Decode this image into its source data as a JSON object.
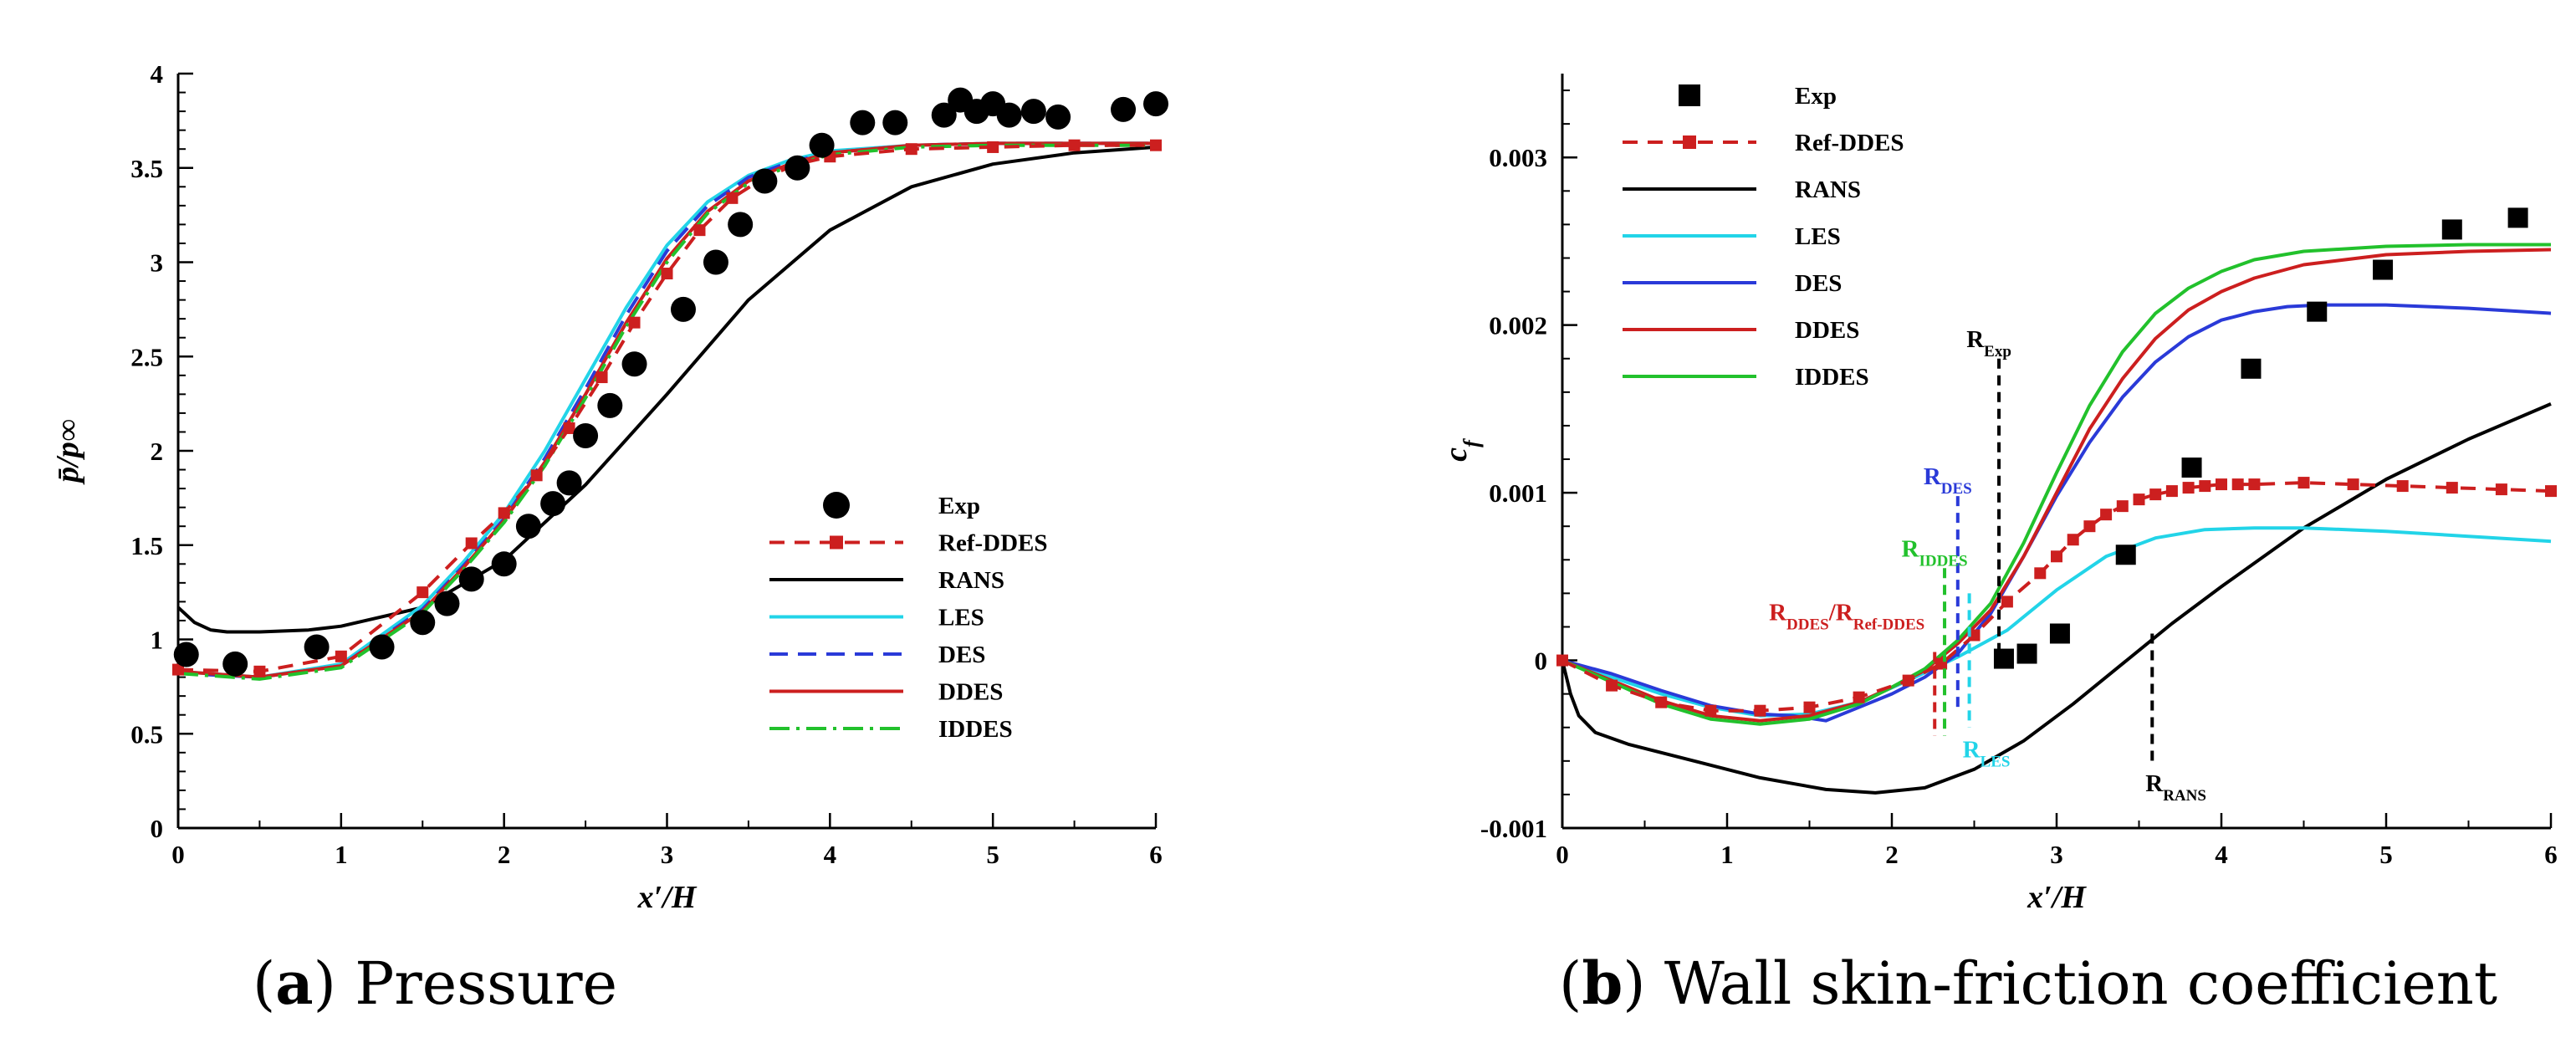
{
  "chart_data": [
    {
      "panel": "a",
      "type": "line",
      "caption_label": "a",
      "caption_text": "Pressure",
      "xlabel": "x′/H",
      "ylabel": "p̄/p∞",
      "xlim": [
        0,
        6
      ],
      "ylim": [
        0,
        4
      ],
      "xticks": [
        0,
        1,
        2,
        3,
        4,
        5,
        6
      ],
      "xtick_labels": [
        "0",
        "1",
        "2",
        "3",
        "4",
        "5",
        "6"
      ],
      "yticks": [
        0,
        0.5,
        1,
        1.5,
        2,
        2.5,
        3,
        3.5,
        4
      ],
      "ytick_labels": [
        "0",
        "0.5",
        "1",
        "1.5",
        "2",
        "2.5",
        "3",
        "3.5",
        "4"
      ],
      "legend_position": "center-right",
      "series": [
        {
          "name": "Exp",
          "style": "marker-circle",
          "color": "#000000",
          "x": [
            0.05,
            0.35,
            0.85,
            1.25,
            1.5,
            1.65,
            1.8,
            2.0,
            2.15,
            2.3,
            2.4,
            2.5,
            2.65,
            2.8,
            3.1,
            3.3,
            3.45,
            3.6,
            3.8,
            3.95,
            4.2,
            4.4,
            4.7,
            4.8,
            4.9,
            5.0,
            5.1,
            5.25,
            5.4,
            5.8,
            6.0
          ],
          "y": [
            0.92,
            0.87,
            0.96,
            0.96,
            1.09,
            1.19,
            1.32,
            1.4,
            1.6,
            1.72,
            1.83,
            2.08,
            2.24,
            2.46,
            2.75,
            3.0,
            3.2,
            3.43,
            3.5,
            3.62,
            3.74,
            3.74,
            3.78,
            3.86,
            3.8,
            3.84,
            3.78,
            3.8,
            3.77,
            3.81,
            3.84
          ]
        },
        {
          "name": "Ref-DDES",
          "style": "dashed-square",
          "color": "#cc1f1f",
          "x": [
            0,
            0.5,
            1.0,
            1.5,
            1.8,
            2.0,
            2.2,
            2.4,
            2.6,
            2.8,
            3.0,
            3.2,
            3.4,
            3.6,
            3.8,
            4.0,
            4.5,
            5.0,
            5.5,
            6.0
          ],
          "y": [
            0.84,
            0.83,
            0.91,
            1.25,
            1.51,
            1.67,
            1.87,
            2.12,
            2.39,
            2.68,
            2.94,
            3.17,
            3.34,
            3.45,
            3.52,
            3.56,
            3.6,
            3.61,
            3.62,
            3.62
          ]
        },
        {
          "name": "RANS",
          "style": "solid",
          "color": "#000000",
          "x": [
            0,
            0.1,
            0.2,
            0.3,
            0.5,
            0.8,
            1.0,
            1.5,
            2.0,
            2.5,
            3.0,
            3.5,
            4.0,
            4.5,
            5.0,
            5.5,
            6.0
          ],
          "y": [
            1.17,
            1.09,
            1.05,
            1.04,
            1.04,
            1.05,
            1.07,
            1.17,
            1.42,
            1.82,
            2.3,
            2.8,
            3.17,
            3.4,
            3.52,
            3.58,
            3.61
          ]
        },
        {
          "name": "LES",
          "style": "solid",
          "color": "#22d4e8",
          "x": [
            0,
            0.5,
            1.0,
            1.5,
            1.75,
            2.0,
            2.25,
            2.5,
            2.75,
            3.0,
            3.25,
            3.5,
            3.75,
            4.0,
            4.5,
            5.0,
            5.5,
            6.0
          ],
          "y": [
            0.83,
            0.8,
            0.87,
            1.18,
            1.41,
            1.67,
            2.0,
            2.38,
            2.76,
            3.09,
            3.32,
            3.46,
            3.54,
            3.59,
            3.62,
            3.63,
            3.63,
            3.63
          ]
        },
        {
          "name": "DES",
          "style": "dashed",
          "color": "#2a3ad8",
          "x": [
            0,
            0.5,
            1.0,
            1.5,
            1.75,
            2.0,
            2.25,
            2.5,
            2.75,
            3.0,
            3.25,
            3.5,
            3.75,
            4.0,
            4.5,
            5.0,
            5.5,
            6.0
          ],
          "y": [
            0.82,
            0.8,
            0.86,
            1.16,
            1.39,
            1.64,
            1.96,
            2.33,
            2.72,
            3.06,
            3.3,
            3.45,
            3.53,
            3.58,
            3.62,
            3.63,
            3.63,
            3.63
          ]
        },
        {
          "name": "DDES",
          "style": "solid",
          "color": "#cc1f1f",
          "x": [
            0,
            0.5,
            1.0,
            1.5,
            1.75,
            2.0,
            2.25,
            2.5,
            2.75,
            3.0,
            3.25,
            3.5,
            3.75,
            4.0,
            4.5,
            5.0,
            5.5,
            6.0
          ],
          "y": [
            0.83,
            0.8,
            0.86,
            1.15,
            1.38,
            1.63,
            1.94,
            2.3,
            2.68,
            3.02,
            3.27,
            3.43,
            3.52,
            3.58,
            3.62,
            3.63,
            3.63,
            3.63
          ]
        },
        {
          "name": "IDDES",
          "style": "dashdot",
          "color": "#22c12c",
          "x": [
            0,
            0.5,
            1.0,
            1.5,
            1.75,
            2.0,
            2.25,
            2.5,
            2.75,
            3.0,
            3.25,
            3.5,
            3.75,
            4.0,
            4.5,
            5.0,
            5.5,
            6.0
          ],
          "y": [
            0.82,
            0.79,
            0.85,
            1.14,
            1.37,
            1.62,
            1.92,
            2.28,
            2.66,
            3.0,
            3.26,
            3.42,
            3.51,
            3.57,
            3.61,
            3.62,
            3.62,
            3.62
          ]
        }
      ]
    },
    {
      "panel": "b",
      "type": "line",
      "caption_label": "b",
      "caption_text": "Wall skin-friction coefficient",
      "xlabel": "x′/H",
      "ylabel": "c",
      "ylabel_sub": "f",
      "xlim": [
        0,
        6
      ],
      "ylim": [
        -0.001,
        0.0035
      ],
      "xticks": [
        0,
        1,
        2,
        3,
        4,
        5,
        6
      ],
      "xtick_labels": [
        "0",
        "1",
        "2",
        "3",
        "4",
        "5",
        "6"
      ],
      "yticks": [
        -0.001,
        0,
        0.001,
        0.002,
        0.003
      ],
      "ytick_labels": [
        "-0.001",
        "0",
        "0.001",
        "0.002",
        "0.003"
      ],
      "legend_position": "top-left",
      "series": [
        {
          "name": "Exp",
          "style": "marker-square",
          "color": "#000000",
          "x": [
            2.68,
            2.82,
            3.02,
            3.42,
            3.82,
            4.18,
            4.58,
            4.98,
            5.4,
            5.8
          ],
          "y": [
            1e-05,
            4e-05,
            0.00016,
            0.00063,
            0.00115,
            0.00174,
            0.00208,
            0.00233,
            0.00257,
            0.00264
          ]
        },
        {
          "name": "Ref-DDES",
          "style": "dashed-square",
          "color": "#cc1f1f",
          "x": [
            0,
            0.3,
            0.6,
            0.9,
            1.2,
            1.5,
            1.8,
            2.1,
            2.3,
            2.5,
            2.7,
            2.9,
            3.0,
            3.1,
            3.2,
            3.3,
            3.4,
            3.5,
            3.6,
            3.7,
            3.8,
            3.9,
            4.0,
            4.1,
            4.2,
            4.5,
            4.8,
            5.1,
            5.4,
            5.7,
            6.0
          ],
          "y": [
            0.0,
            -0.00015,
            -0.00025,
            -0.0003,
            -0.0003,
            -0.00028,
            -0.00022,
            -0.00012,
            -2e-05,
            0.00015,
            0.00035,
            0.00052,
            0.00062,
            0.00072,
            0.0008,
            0.00087,
            0.00092,
            0.00096,
            0.00099,
            0.00101,
            0.00103,
            0.00104,
            0.00105,
            0.00105,
            0.00105,
            0.00106,
            0.00105,
            0.00104,
            0.00103,
            0.00102,
            0.00101
          ]
        },
        {
          "name": "RANS",
          "style": "solid",
          "color": "#000000",
          "x": [
            0,
            0.05,
            0.1,
            0.2,
            0.4,
            0.8,
            1.2,
            1.6,
            1.9,
            2.2,
            2.5,
            2.8,
            3.1,
            3.4,
            3.7,
            4.0,
            4.5,
            5.0,
            5.5,
            6.0
          ],
          "y": [
            0.0,
            -0.0002,
            -0.00033,
            -0.00043,
            -0.0005,
            -0.0006,
            -0.0007,
            -0.00077,
            -0.00079,
            -0.00076,
            -0.00065,
            -0.00048,
            -0.00026,
            -2e-05,
            0.00022,
            0.00044,
            0.00079,
            0.00108,
            0.00132,
            0.00153
          ]
        },
        {
          "name": "LES",
          "style": "solid",
          "color": "#22d4e8",
          "x": [
            0,
            0.3,
            0.6,
            0.9,
            1.2,
            1.5,
            1.8,
            2.1,
            2.4,
            2.7,
            3.0,
            3.3,
            3.6,
            3.9,
            4.2,
            4.5,
            5.0,
            5.5,
            6.0
          ],
          "y": [
            0.0,
            -0.0001,
            -0.0002,
            -0.00028,
            -0.00033,
            -0.00032,
            -0.00025,
            -0.00012,
            2e-05,
            0.00018,
            0.00042,
            0.00062,
            0.00073,
            0.00078,
            0.00079,
            0.00079,
            0.00077,
            0.00074,
            0.00071
          ]
        },
        {
          "name": "DES",
          "style": "solid",
          "color": "#2a3ad8",
          "x": [
            0,
            0.3,
            0.6,
            0.9,
            1.2,
            1.4,
            1.6,
            1.8,
            2.0,
            2.2,
            2.4,
            2.6,
            2.8,
            3.0,
            3.2,
            3.4,
            3.6,
            3.8,
            4.0,
            4.2,
            4.4,
            4.6,
            5.0,
            5.5,
            6.0
          ],
          "y": [
            0.0,
            -8e-05,
            -0.00018,
            -0.00027,
            -0.00032,
            -0.00033,
            -0.00036,
            -0.00028,
            -0.0002,
            -0.0001,
            4e-05,
            0.00028,
            0.00062,
            0.00098,
            0.0013,
            0.00157,
            0.00178,
            0.00193,
            0.00203,
            0.00208,
            0.00211,
            0.00212,
            0.00212,
            0.0021,
            0.00207
          ]
        },
        {
          "name": "DDES",
          "style": "solid",
          "color": "#cc1f1f",
          "x": [
            0,
            0.3,
            0.6,
            0.9,
            1.2,
            1.5,
            1.8,
            2.0,
            2.2,
            2.4,
            2.6,
            2.8,
            3.0,
            3.2,
            3.4,
            3.6,
            3.8,
            4.0,
            4.2,
            4.5,
            5.0,
            5.5,
            6.0
          ],
          "y": [
            0.0,
            -0.00012,
            -0.00024,
            -0.00033,
            -0.00036,
            -0.00033,
            -0.00025,
            -0.00016,
            -6e-05,
            0.0001,
            0.0003,
            0.00062,
            0.001,
            0.00138,
            0.00168,
            0.00192,
            0.00209,
            0.0022,
            0.00228,
            0.00236,
            0.00242,
            0.00244,
            0.00245
          ]
        },
        {
          "name": "IDDES",
          "style": "solid",
          "color": "#22c12c",
          "x": [
            0,
            0.3,
            0.6,
            0.9,
            1.2,
            1.5,
            1.8,
            2.0,
            2.2,
            2.4,
            2.6,
            2.8,
            3.0,
            3.2,
            3.4,
            3.6,
            3.8,
            4.0,
            4.2,
            4.5,
            5.0,
            5.5,
            6.0
          ],
          "y": [
            0.0,
            -0.00013,
            -0.00026,
            -0.00035,
            -0.00038,
            -0.00035,
            -0.00026,
            -0.00016,
            -5e-05,
            0.00012,
            0.00034,
            0.0007,
            0.00112,
            0.00152,
            0.00184,
            0.00207,
            0.00222,
            0.00232,
            0.00239,
            0.00244,
            0.00247,
            0.00248,
            0.00248
          ]
        }
      ],
      "annotations": [
        {
          "main": "R",
          "sub": "Exp",
          "x": 2.65,
          "y_top": 0.0018,
          "y_bottom": 0.0,
          "color": "#000000",
          "label_anchor": "top"
        },
        {
          "main": "R",
          "sub": "DES",
          "x": 2.4,
          "y_top": 0.00098,
          "y_bottom": -0.0003,
          "color": "#2a3ad8",
          "label_anchor": "top"
        },
        {
          "main": "R",
          "sub": "IDDES",
          "x": 2.32,
          "y_top": 0.00055,
          "y_bottom": -0.00045,
          "color": "#22c12c",
          "label_anchor": "top"
        },
        {
          "main": "R",
          "sub": "DDES",
          "sub_mid": "/R",
          "sub2": "Ref-DDES",
          "x": 2.26,
          "y_top": 5e-05,
          "y_bottom": -0.00045,
          "color": "#cc1f1f",
          "label_anchor": "top-left"
        },
        {
          "main": "R",
          "sub": "LES",
          "x": 2.47,
          "y_top": 0.0004,
          "y_bottom": -0.0004,
          "color": "#22d4e8",
          "label_anchor": "bottom"
        },
        {
          "main": "R",
          "sub": "RANS",
          "x": 3.58,
          "y_top": 0.00016,
          "y_bottom": -0.0006,
          "color": "#000000",
          "label_anchor": "bottom"
        }
      ]
    }
  ]
}
